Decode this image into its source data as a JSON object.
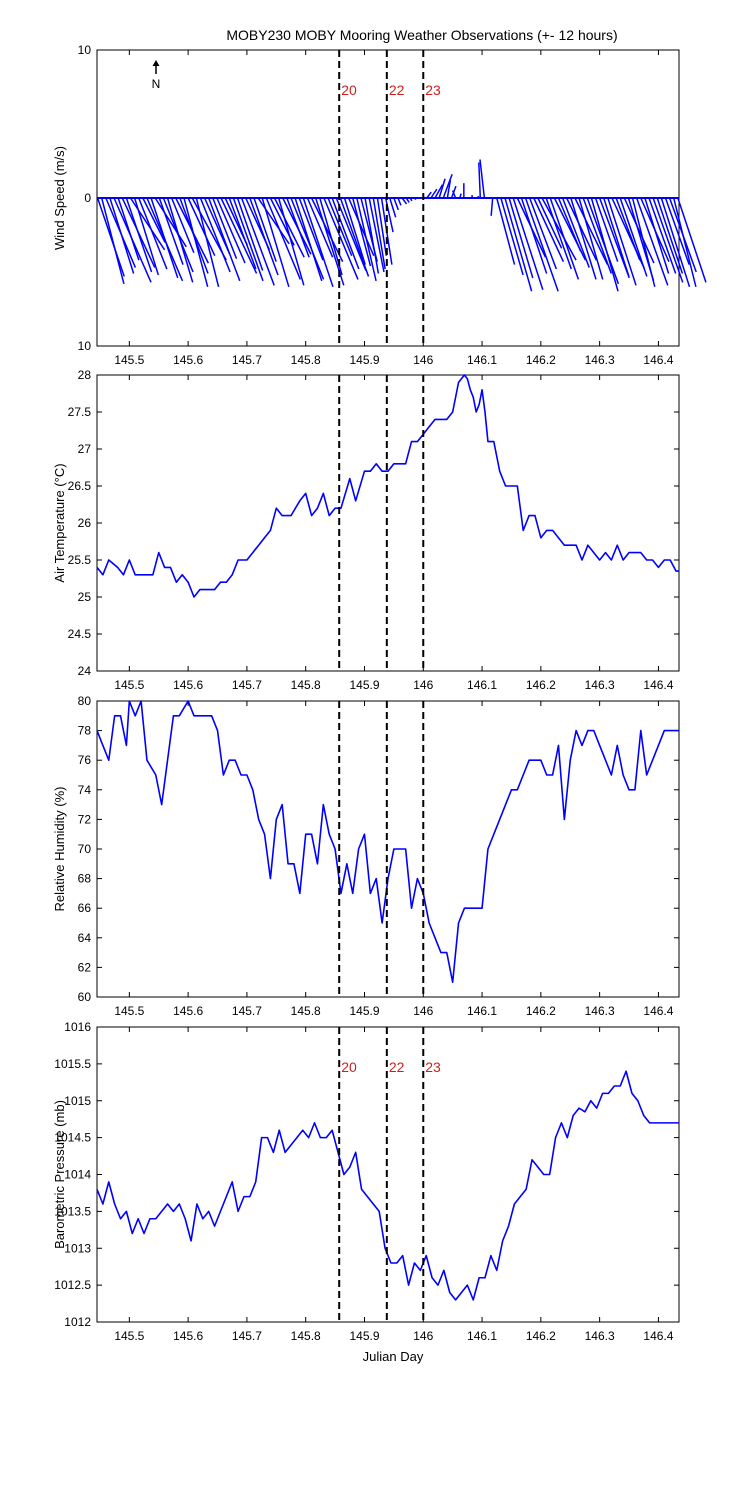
{
  "title": "MOBY230 MOBY Mooring Weather Observations (+- 12 hours)",
  "xlabel": "Julian Day",
  "north_label": "N",
  "colors": {
    "line": "#0000ff",
    "marker": "#000000",
    "marker_label": "#d21e1e"
  },
  "chart_data": [
    {
      "type": "quiver",
      "ylabel": "Wind Speed (m/s)",
      "xlim": [
        145.445,
        146.435
      ],
      "ylim": [
        -10,
        10
      ],
      "y_tick_labels": [
        "10",
        "0",
        "10"
      ],
      "x_ticks": [
        "145.5",
        "145.6",
        "145.7",
        "145.8",
        "145.9",
        "146",
        "146.1",
        "146.2",
        "146.3",
        "146.4"
      ],
      "markers": [
        {
          "x": 145.857,
          "label": "20"
        },
        {
          "x": 145.938,
          "label": "22"
        },
        {
          "x": 146.0,
          "label": "23"
        }
      ],
      "x": [
        145.446,
        145.453,
        145.46,
        145.467,
        145.474,
        145.481,
        145.488,
        145.495,
        145.502,
        145.509,
        145.516,
        145.523,
        145.53,
        145.537,
        145.544,
        145.551,
        145.558,
        145.565,
        145.572,
        145.579,
        145.586,
        145.593,
        145.6,
        145.607,
        145.614,
        145.621,
        145.628,
        145.635,
        145.642,
        145.649,
        145.656,
        145.663,
        145.67,
        145.677,
        145.684,
        145.691,
        145.698,
        145.705,
        145.712,
        145.719,
        145.726,
        145.733,
        145.74,
        145.747,
        145.754,
        145.761,
        145.768,
        145.775,
        145.782,
        145.789,
        145.796,
        145.803,
        145.81,
        145.817,
        145.824,
        145.831,
        145.838,
        145.845,
        145.852,
        145.859,
        145.866,
        145.873,
        145.88,
        145.887,
        145.894,
        145.901,
        145.908,
        145.915,
        145.922,
        145.929,
        145.936,
        145.943,
        145.95,
        145.957,
        145.964,
        145.971,
        145.978,
        145.985,
        145.992,
        145.999,
        146.006,
        146.013,
        146.02,
        146.027,
        146.034,
        146.041,
        146.048,
        146.055,
        146.062,
        146.069,
        146.076,
        146.083,
        146.09,
        146.097,
        146.104,
        146.111,
        146.118,
        146.125,
        146.132,
        146.139,
        146.146,
        146.153,
        146.16,
        146.167,
        146.174,
        146.181,
        146.188,
        146.195,
        146.202,
        146.209,
        146.216,
        146.223,
        146.23,
        146.237,
        146.244,
        146.251,
        146.258,
        146.265,
        146.272,
        146.279,
        146.286,
        146.293,
        146.3,
        146.307,
        146.314,
        146.321,
        146.328,
        146.335,
        146.342,
        146.349,
        146.356,
        146.363,
        146.37,
        146.377,
        146.384,
        146.391,
        146.398,
        146.405,
        146.412,
        146.419,
        146.426,
        146.433
      ],
      "u": [
        1.8,
        1.5,
        2.0,
        1.6,
        2.5,
        1.4,
        2.2,
        1.7,
        2.3,
        1.6,
        1.9,
        1.5,
        2.4,
        1.8,
        2.1,
        1.6,
        2.0,
        1.7,
        1.5,
        2.2,
        1.9,
        1.6,
        1.8,
        2.3,
        1.5,
        2.0,
        1.7,
        2.1,
        1.6,
        1.9,
        2.4,
        1.5,
        1.8,
        2.0,
        1.7,
        2.2,
        1.6,
        1.9,
        1.5,
        2.1,
        1.8,
        2.3,
        1.6,
        2.0,
        1.7,
        1.9,
        1.5,
        2.2,
        1.8,
        1.6,
        2.0,
        1.7,
        2.1,
        1.9,
        1.5,
        2.3,
        1.6,
        1.8,
        2.0,
        1.9,
        1.4,
        1.7,
        1.2,
        1.3,
        1.1,
        0.9,
        1.0,
        0.8,
        0.6,
        0.7,
        0.5,
        0.4,
        0.3,
        0.2,
        0.3,
        0.2,
        0.1,
        0.1,
        0.2,
        0.1,
        0.3,
        0.4,
        0.5,
        0.4,
        0.6,
        0.2,
        0.3,
        -0.2,
        0.1,
        0.0,
        -0.3,
        0.0,
        0.2,
        -0.1,
        -0.3,
        -0.2,
        -0.1,
        1.2,
        1.5,
        1.8,
        1.6,
        2.0,
        1.9,
        1.7,
        2.2,
        1.8,
        2.0,
        1.6,
        2.3,
        1.7,
        1.9,
        2.1,
        1.5,
        1.8,
        2.0,
        1.7,
        2.2,
        1.6,
        1.9,
        2.1,
        1.8,
        1.5,
        2.0,
        1.7,
        1.9,
        2.2,
        1.6,
        1.8,
        2.0,
        1.7,
        1.5,
        2.1,
        1.9,
        1.6,
        1.8,
        2.0,
        1.7,
        1.9,
        1.6,
        1.8,
        1.5,
        1.9,
        2.0,
        1.7
      ],
      "v": [
        -5.3,
        -5.8,
        -4.7,
        -5.1,
        -5.7,
        -4.2,
        -4.7,
        -5.0,
        -3.5,
        -5.2,
        -4.8,
        -3.0,
        -5.6,
        -5.4,
        -3.3,
        -4.5,
        -5.0,
        -5.7,
        -3.7,
        -4.4,
        -5.1,
        -6.0,
        -3.9,
        -4.2,
        -6.0,
        -5.0,
        -3.8,
        -5.6,
        -4.1,
        -4.4,
        -5.1,
        -3.2,
        -4.8,
        -5.6,
        -4.9,
        -5.9,
        -3.5,
        -5.2,
        -4.3,
        -3.1,
        -6.0,
        -5.5,
        -3.2,
        -4.0,
        -5.9,
        -3.8,
        -4.0,
        -5.5,
        -5.6,
        -4.2,
        -6.0,
        -4.0,
        -4.3,
        -5.9,
        -5.2,
        -5.5,
        -3.9,
        -4.8,
        -4.9,
        -5.3,
        -4.5,
        -3.9,
        -4.6,
        -5.6,
        -4.3,
        -5.1,
        -5.0,
        -4.8,
        -3.9,
        -4.5,
        -2.3,
        -1.3,
        -0.8,
        -0.5,
        -0.4,
        -0.3,
        -0.2,
        -0.1,
        0.0,
        0.1,
        0.4,
        0.6,
        0.9,
        1.3,
        1.6,
        1.2,
        0.8,
        0.5,
        0.3,
        1.0,
        0.0,
        0.2,
        0.1,
        2.4,
        2.6,
        0.0,
        -1.2,
        -4.5,
        -5.2,
        -6.3,
        -5.4,
        -6.2,
        -4.0,
        -5.1,
        -6.3,
        -4.8,
        -4.3,
        -3.4,
        -4.2,
        -4.8,
        -5.5,
        -4.2,
        -3.6,
        -4.7,
        -4.2,
        -5.5,
        -4.5,
        -5.5,
        -5.1,
        -5.8,
        -6.3,
        -4.3,
        -5.4,
        -5.3,
        -5.9,
        -4.8,
        -4.2,
        -5.3,
        -4.4,
        -5.6,
        -6.0,
        -5.9,
        -4.3,
        -5.1,
        -5.1,
        -5.7,
        -5.1,
        -6.0,
        -4.5,
        -5.0,
        -6.0,
        -5.7
      ]
    },
    {
      "type": "line",
      "ylabel": "Air Temperature (°C)",
      "xlim": [
        145.445,
        146.435
      ],
      "ylim": [
        24,
        28
      ],
      "y_tick_labels": [
        "24",
        "24.5",
        "25",
        "25.5",
        "26",
        "26.5",
        "27",
        "27.5",
        "28"
      ],
      "x_ticks": [
        "145.5",
        "145.6",
        "145.7",
        "145.8",
        "145.9",
        "146",
        "146.1",
        "146.2",
        "146.3",
        "146.4"
      ],
      "markers": [
        {
          "x": 145.857,
          "label": ""
        },
        {
          "x": 145.938,
          "label": ""
        },
        {
          "x": 146.0,
          "label": ""
        }
      ],
      "x": [
        145.445,
        145.455,
        145.465,
        145.48,
        145.49,
        145.5,
        145.51,
        145.53,
        145.54,
        145.55,
        145.56,
        145.57,
        145.58,
        145.59,
        145.6,
        145.61,
        145.62,
        145.635,
        145.645,
        145.655,
        145.665,
        145.675,
        145.685,
        145.7,
        145.71,
        145.72,
        145.73,
        145.74,
        145.75,
        145.76,
        145.775,
        145.79,
        145.8,
        145.81,
        145.82,
        145.83,
        145.84,
        145.85,
        145.86,
        145.875,
        145.885,
        145.9,
        145.91,
        145.92,
        145.93,
        145.94,
        145.95,
        145.96,
        145.97,
        145.98,
        145.99,
        146.0,
        146.01,
        146.02,
        146.03,
        146.04,
        146.05,
        146.06,
        146.07,
        146.075,
        146.08,
        146.085,
        146.09,
        146.095,
        146.1,
        146.105,
        146.11,
        146.115,
        146.12,
        146.13,
        146.14,
        146.15,
        146.16,
        146.17,
        146.175,
        146.18,
        146.19,
        146.2,
        146.21,
        146.22,
        146.23,
        146.24,
        146.25,
        146.26,
        146.27,
        146.28,
        146.29,
        146.3,
        146.31,
        146.32,
        146.33,
        146.34,
        146.35,
        146.36,
        146.37,
        146.38,
        146.39,
        146.4,
        146.41,
        146.42,
        146.43,
        146.435
      ],
      "y": [
        25.4,
        25.3,
        25.5,
        25.4,
        25.3,
        25.5,
        25.3,
        25.3,
        25.3,
        25.6,
        25.4,
        25.4,
        25.2,
        25.3,
        25.2,
        25.0,
        25.1,
        25.1,
        25.1,
        25.2,
        25.2,
        25.3,
        25.5,
        25.5,
        25.6,
        25.7,
        25.8,
        25.9,
        26.2,
        26.1,
        26.1,
        26.3,
        26.4,
        26.1,
        26.2,
        26.4,
        26.1,
        26.2,
        26.2,
        26.6,
        26.3,
        26.7,
        26.7,
        26.8,
        26.7,
        26.7,
        26.8,
        26.8,
        26.8,
        27.1,
        27.1,
        27.2,
        27.3,
        27.4,
        27.4,
        27.4,
        27.5,
        27.9,
        28.0,
        27.95,
        27.8,
        27.7,
        27.5,
        27.6,
        27.8,
        27.5,
        27.1,
        27.1,
        27.1,
        26.7,
        26.5,
        26.5,
        26.5,
        25.9,
        26.0,
        26.1,
        26.1,
        25.8,
        25.9,
        25.9,
        25.8,
        25.7,
        25.7,
        25.7,
        25.5,
        25.7,
        25.6,
        25.5,
        25.6,
        25.5,
        25.7,
        25.5,
        25.6,
        25.6,
        25.6,
        25.5,
        25.5,
        25.4,
        25.5,
        25.5,
        25.35,
        25.35
      ]
    },
    {
      "type": "line",
      "ylabel": "Relative Humidity (%)",
      "xlim": [
        145.445,
        146.435
      ],
      "ylim": [
        60,
        80
      ],
      "y_tick_labels": [
        "60",
        "62",
        "64",
        "66",
        "68",
        "70",
        "72",
        "74",
        "76",
        "78",
        "80"
      ],
      "x_ticks": [
        "145.5",
        "145.6",
        "145.7",
        "145.8",
        "145.9",
        "146",
        "146.1",
        "146.2",
        "146.3",
        "146.4"
      ],
      "markers": [
        {
          "x": 145.857,
          "label": ""
        },
        {
          "x": 145.938,
          "label": ""
        },
        {
          "x": 146.0,
          "label": ""
        }
      ],
      "x": [
        145.445,
        145.455,
        145.465,
        145.475,
        145.485,
        145.495,
        145.5,
        145.51,
        145.52,
        145.53,
        145.545,
        145.555,
        145.565,
        145.575,
        145.585,
        145.6,
        145.61,
        145.62,
        145.63,
        145.64,
        145.65,
        145.66,
        145.67,
        145.68,
        145.69,
        145.7,
        145.71,
        145.72,
        145.73,
        145.74,
        145.75,
        145.76,
        145.77,
        145.78,
        145.79,
        145.8,
        145.81,
        145.82,
        145.83,
        145.84,
        145.85,
        145.86,
        145.87,
        145.88,
        145.89,
        145.9,
        145.91,
        145.92,
        145.93,
        145.94,
        145.95,
        145.96,
        145.97,
        145.98,
        145.99,
        146.0,
        146.01,
        146.02,
        146.03,
        146.04,
        146.05,
        146.06,
        146.07,
        146.08,
        146.09,
        146.1,
        146.11,
        146.12,
        146.13,
        146.14,
        146.15,
        146.16,
        146.17,
        146.18,
        146.19,
        146.2,
        146.21,
        146.22,
        146.23,
        146.24,
        146.25,
        146.26,
        146.27,
        146.28,
        146.29,
        146.3,
        146.31,
        146.32,
        146.33,
        146.34,
        146.35,
        146.36,
        146.37,
        146.38,
        146.39,
        146.4,
        146.41,
        146.42,
        146.43,
        146.435
      ],
      "y": [
        78,
        77,
        76,
        79,
        79,
        77,
        80,
        79,
        80,
        76,
        75,
        73,
        76,
        79,
        79,
        80,
        79,
        79,
        79,
        79,
        78,
        75,
        76,
        76,
        75,
        75,
        74,
        72,
        71,
        68,
        72,
        73,
        69,
        69,
        67,
        71,
        71,
        69,
        73,
        71,
        70,
        67,
        69,
        67,
        70,
        71,
        67,
        68,
        65,
        68,
        70,
        70,
        70,
        66,
        68,
        67,
        65,
        64,
        63,
        63,
        61,
        65,
        66,
        66,
        66,
        66,
        70,
        71,
        72,
        73,
        74,
        74,
        75,
        76,
        76,
        76,
        75,
        75,
        77,
        72,
        76,
        78,
        77,
        78,
        78,
        77,
        76,
        75,
        77,
        75,
        74,
        74,
        78,
        75,
        76,
        77,
        78,
        78,
        78,
        78
      ]
    },
    {
      "type": "line",
      "ylabel": "Barometric Pressure (mb)",
      "xlim": [
        145.445,
        146.435
      ],
      "ylim": [
        1012,
        1016
      ],
      "y_tick_labels": [
        "1012",
        "1012.5",
        "1013",
        "1013.5",
        "1014",
        "1014.5",
        "1015",
        "1015.5",
        "1016"
      ],
      "x_ticks": [
        "145.5",
        "145.6",
        "145.7",
        "145.8",
        "145.9",
        "146",
        "146.1",
        "146.2",
        "146.3",
        "146.4"
      ],
      "markers": [
        {
          "x": 145.857,
          "label": "20"
        },
        {
          "x": 145.938,
          "label": "22"
        },
        {
          "x": 146.0,
          "label": "23"
        }
      ],
      "x": [
        145.445,
        145.455,
        145.465,
        145.475,
        145.485,
        145.495,
        145.505,
        145.515,
        145.525,
        145.535,
        145.545,
        145.555,
        145.565,
        145.575,
        145.585,
        145.595,
        145.605,
        145.615,
        145.625,
        145.635,
        145.645,
        145.655,
        145.665,
        145.675,
        145.685,
        145.695,
        145.705,
        145.715,
        145.725,
        145.735,
        145.745,
        145.755,
        145.765,
        145.775,
        145.785,
        145.795,
        145.805,
        145.815,
        145.825,
        145.835,
        145.845,
        145.855,
        145.865,
        145.875,
        145.885,
        145.895,
        145.905,
        145.915,
        145.925,
        145.935,
        145.945,
        145.955,
        145.965,
        145.975,
        145.985,
        145.995,
        146.005,
        146.015,
        146.025,
        146.035,
        146.045,
        146.055,
        146.065,
        146.075,
        146.085,
        146.095,
        146.105,
        146.115,
        146.125,
        146.135,
        146.145,
        146.155,
        146.165,
        146.175,
        146.185,
        146.195,
        146.205,
        146.215,
        146.225,
        146.235,
        146.245,
        146.255,
        146.265,
        146.275,
        146.285,
        146.295,
        146.305,
        146.315,
        146.325,
        146.335,
        146.345,
        146.355,
        146.365,
        146.375,
        146.385,
        146.395,
        146.405,
        146.415,
        146.425,
        146.435
      ],
      "y": [
        1013.8,
        1013.6,
        1013.9,
        1013.6,
        1013.4,
        1013.5,
        1013.2,
        1013.4,
        1013.2,
        1013.4,
        1013.4,
        1013.5,
        1013.6,
        1013.5,
        1013.6,
        1013.4,
        1013.1,
        1013.6,
        1013.4,
        1013.5,
        1013.3,
        1013.5,
        1013.7,
        1013.9,
        1013.5,
        1013.7,
        1013.7,
        1013.9,
        1014.5,
        1014.5,
        1014.3,
        1014.6,
        1014.3,
        1014.4,
        1014.5,
        1014.6,
        1014.5,
        1014.7,
        1014.5,
        1014.5,
        1014.6,
        1014.3,
        1014.0,
        1014.1,
        1014.3,
        1013.8,
        1013.7,
        1013.6,
        1013.5,
        1013.0,
        1012.8,
        1012.8,
        1012.9,
        1012.5,
        1012.8,
        1012.7,
        1012.9,
        1012.6,
        1012.5,
        1012.7,
        1012.4,
        1012.3,
        1012.4,
        1012.5,
        1012.3,
        1012.6,
        1012.6,
        1012.9,
        1012.7,
        1013.1,
        1013.3,
        1013.6,
        1013.7,
        1013.8,
        1014.2,
        1014.1,
        1014.0,
        1014.0,
        1014.5,
        1014.7,
        1014.5,
        1014.8,
        1014.9,
        1014.85,
        1015.0,
        1014.9,
        1015.1,
        1015.1,
        1015.2,
        1015.2,
        1015.4,
        1015.1,
        1015.0,
        1014.8,
        1014.7,
        1014.7,
        1014.7,
        1014.7,
        1014.7,
        1014.7
      ]
    }
  ]
}
